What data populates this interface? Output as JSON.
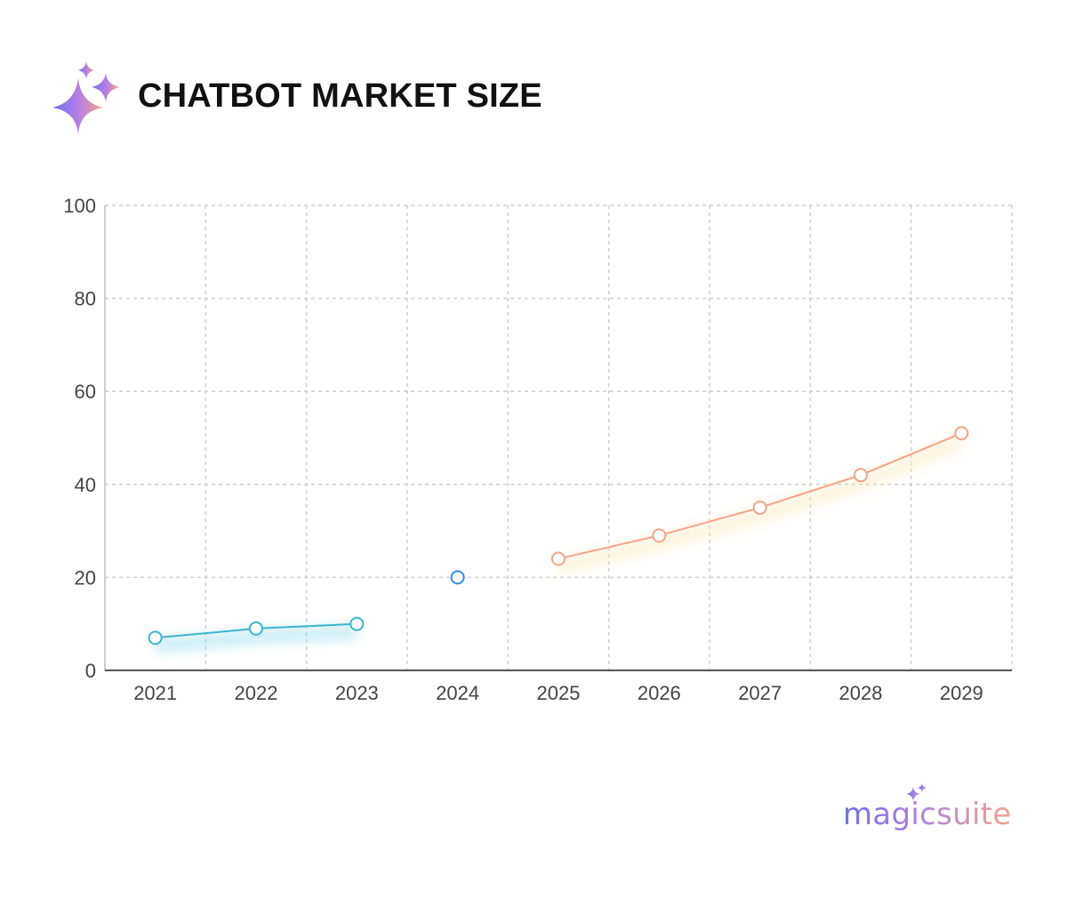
{
  "header": {
    "title": "CHATBOT MARKET SIZE",
    "logo_icon": "sparkles-icon"
  },
  "brand": {
    "name": "magicsuite",
    "icon": "sparkles-icon"
  },
  "colors": {
    "historical": "#3bb6cf",
    "current": "#2e8ee6",
    "forecast": "#f6a283",
    "grid": "#cfcfcf",
    "axis": "#555555"
  },
  "chart_data": {
    "type": "line",
    "categories": [
      "2021",
      "2022",
      "2023",
      "2024",
      "2025",
      "2026",
      "2027",
      "2028",
      "2029"
    ],
    "series": [
      {
        "values": [
          7,
          9,
          10,
          null,
          null,
          null,
          null,
          null,
          null
        ],
        "color": "#3bb6cf",
        "glow": "#8fd8ea"
      },
      {
        "values": [
          null,
          null,
          null,
          20,
          null,
          null,
          null,
          null,
          null
        ],
        "color": "#2e8ee6",
        "glow": null
      },
      {
        "values": [
          null,
          null,
          null,
          null,
          24,
          29,
          35,
          42,
          51
        ],
        "color": "#f6a283",
        "glow": "#fde7b8"
      }
    ],
    "ylim": [
      0,
      100
    ],
    "yticks": [
      "0",
      "20",
      "40",
      "60",
      "80",
      "100"
    ],
    "title": "CHATBOT MARKET SIZE",
    "xlabel": "",
    "ylabel": "",
    "grid": true,
    "legend": "none"
  }
}
